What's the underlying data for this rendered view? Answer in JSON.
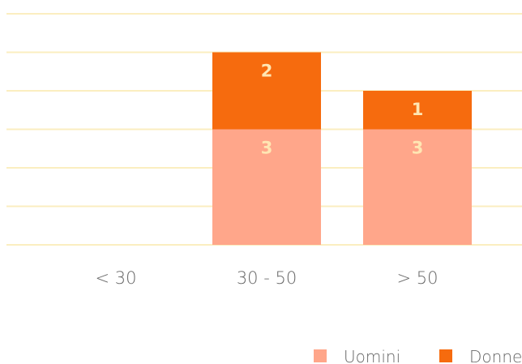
{
  "chart_data": {
    "type": "bar",
    "stacked": true,
    "categories": [
      "< 30",
      "30 - 50",
      "> 50"
    ],
    "series": [
      {
        "name": "Uomini",
        "values": [
          0,
          3,
          3
        ],
        "color": "#ffa68a",
        "label_color": "#ffe6b3"
      },
      {
        "name": "Donne",
        "values": [
          0,
          2,
          1
        ],
        "color": "#f66b0e",
        "label_color": "#ffe6b3"
      }
    ],
    "ylim": [
      0,
      6
    ],
    "grid": true,
    "grid_color": "#fbeec0",
    "legend": "bottom-right"
  }
}
